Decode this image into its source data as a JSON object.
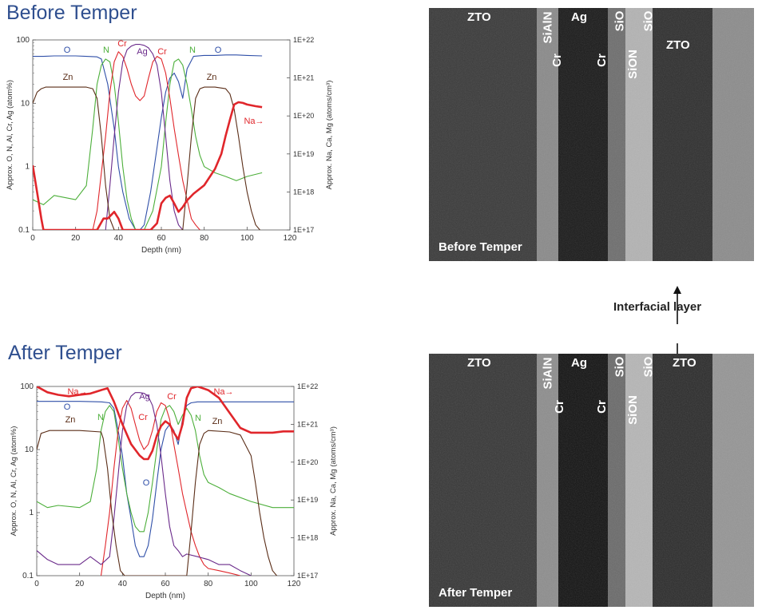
{
  "titles": {
    "before": "Before Temper",
    "after": "After Temper"
  },
  "colors": {
    "title": "#2f4f8f",
    "O": "#2f4fa8",
    "N": "#4caf3a",
    "Cr": "#e0262b",
    "Ag": "#6a2a8a",
    "Zn": "#5a2d17",
    "Na": "#e0262b"
  },
  "chart_data": [
    {
      "type": "line",
      "title": "Before Temper",
      "xlabel": "Depth (nm)",
      "ylabel": "Approx. O, N, Al, Cr, Ag (atom%)",
      "y2label": "Approx. Na, Ca, Mg (atoms/cm³)",
      "y_scale": "log",
      "xlim": [
        0,
        120
      ],
      "ylim": [
        0.1,
        100
      ],
      "y2lim": [
        "1E+17",
        "1E+22"
      ],
      "x_ticks": [
        "0",
        "20",
        "40",
        "60",
        "80",
        "100",
        "120"
      ],
      "y_ticks": [
        "0.1",
        "1",
        "10",
        "100"
      ],
      "y2_ticks": [
        "1E+17",
        "1E+18",
        "1E+19",
        "1E+20",
        "1E+21",
        "1E+22"
      ],
      "grid": false,
      "series": [
        {
          "name": "O",
          "x": [
            0,
            5,
            10,
            20,
            25,
            30,
            32,
            35,
            38,
            40,
            42,
            45,
            48,
            50,
            52,
            55,
            58,
            60,
            62,
            64,
            66,
            68,
            70,
            72,
            75,
            80,
            85,
            90,
            95,
            100,
            107
          ],
          "y": [
            55,
            55,
            56,
            56,
            55,
            54,
            50,
            20,
            4,
            1,
            0.4,
            0.15,
            0.1,
            0.1,
            0.12,
            0.4,
            2,
            6,
            15,
            25,
            30,
            22,
            12,
            35,
            55,
            57,
            57,
            58,
            58,
            57,
            56
          ]
        },
        {
          "name": "N",
          "x": [
            0,
            5,
            10,
            20,
            25,
            28,
            30,
            32,
            34,
            36,
            38,
            40,
            42,
            44,
            46,
            48,
            52,
            56,
            60,
            62,
            64,
            66,
            68,
            70,
            72,
            74,
            76,
            78,
            80,
            85,
            90,
            95,
            100,
            107
          ],
          "y": [
            0.3,
            0.25,
            0.35,
            0.3,
            0.5,
            4,
            20,
            40,
            50,
            45,
            20,
            5,
            1,
            0.3,
            0.15,
            0.1,
            0.1,
            0.2,
            1,
            5,
            20,
            45,
            50,
            40,
            20,
            8,
            3,
            1.5,
            1,
            0.8,
            0.7,
            0.6,
            0.7,
            0.8
          ]
        },
        {
          "name": "Cr",
          "x": [
            28,
            30,
            32,
            34,
            36,
            38,
            40,
            42,
            44,
            46,
            48,
            50,
            52,
            54,
            56,
            58,
            60,
            62,
            64,
            66,
            68,
            70,
            72,
            74,
            76,
            78
          ],
          "y": [
            0.1,
            0.2,
            0.8,
            3,
            15,
            45,
            65,
            55,
            35,
            20,
            13,
            11,
            13,
            25,
            45,
            55,
            50,
            30,
            12,
            4,
            1.5,
            0.6,
            0.3,
            0.15,
            0.12,
            0.1
          ]
        },
        {
          "name": "Ag",
          "x": [
            34,
            36,
            38,
            40,
            42,
            44,
            46,
            48,
            50,
            52,
            54,
            56,
            58,
            60,
            62,
            64,
            66,
            68,
            70
          ],
          "y": [
            0.1,
            0.5,
            3,
            15,
            45,
            70,
            80,
            85,
            85,
            82,
            75,
            60,
            40,
            15,
            3,
            0.6,
            0.2,
            0.12,
            0.1
          ]
        },
        {
          "name": "Zn",
          "x": [
            0,
            2,
            4,
            6,
            8,
            10,
            20,
            25,
            28,
            30,
            32,
            34,
            36,
            38,
            70,
            72,
            74,
            76,
            78,
            80,
            85,
            90,
            92,
            94,
            96,
            98,
            100,
            102,
            104,
            106
          ],
          "y": [
            10,
            15,
            17,
            18,
            18,
            18,
            18,
            18,
            17,
            12,
            3,
            0.5,
            0.15,
            0.1,
            0.1,
            0.5,
            3,
            12,
            17,
            18,
            18,
            17,
            14,
            8,
            3,
            1,
            0.4,
            0.2,
            0.12,
            0.1
          ]
        },
        {
          "name": "Na",
          "x": [
            0,
            2,
            4,
            5,
            6,
            30,
            33,
            35,
            38,
            40,
            42,
            44,
            46,
            48,
            50,
            55,
            58,
            60,
            62,
            64,
            66,
            68,
            70,
            72,
            75,
            80,
            85,
            88,
            90,
            92,
            94,
            96,
            98,
            100,
            104,
            107
          ],
          "y": [
            "5E+18",
            "1E+18",
            "2E+17",
            "1E+17",
            "1E+17",
            "1E+17",
            "2E+17",
            "2E+17",
            "3E+17",
            "2E+17",
            "1E+17",
            "1E+17",
            "1E+17",
            "1E+17",
            "1E+17",
            "1E+17",
            "1.5E+17",
            "5E+17",
            "7E+17",
            "8E+17",
            "5E+17",
            "3E+17",
            "4E+17",
            "6E+17",
            "9E+17",
            "1.5E+18",
            "4E+18",
            "1E+19",
            "3E+19",
            "8E+19",
            "2E+20",
            "2.3E+20",
            "2.2E+20",
            "2E+20",
            "1.8E+20",
            "1.7E+20"
          ]
        }
      ],
      "annotations": [
        "O",
        "N",
        "Cr",
        "Ag",
        "Cr",
        "N",
        "O",
        "Zn",
        "Zn",
        "Na→"
      ]
    },
    {
      "type": "line",
      "title": "After Temper",
      "xlabel": "Depth (nm)",
      "ylabel": "Approx. O, N, Al, Cr, Ag (atom%)",
      "y2label": "Approx. Na, Ca, Mg (atoms/cm³)",
      "y_scale": "log",
      "xlim": [
        0,
        120
      ],
      "ylim": [
        0.1,
        100
      ],
      "y2lim": [
        "1E+17",
        "1E+22"
      ],
      "x_ticks": [
        "0",
        "20",
        "40",
        "60",
        "80",
        "100",
        "120"
      ],
      "y_ticks": [
        "0.1",
        "1",
        "10",
        "100"
      ],
      "y2_ticks": [
        "1E+17",
        "1E+18",
        "1E+19",
        "1E+20",
        "1E+21",
        "1E+22"
      ],
      "grid": false,
      "series": [
        {
          "name": "O",
          "x": [
            0,
            10,
            20,
            30,
            34,
            36,
            38,
            40,
            42,
            44,
            46,
            48,
            50,
            52,
            54,
            56,
            58,
            60,
            62,
            64,
            66,
            68,
            70,
            72,
            75,
            80,
            90,
            100,
            110,
            120
          ],
          "y": [
            58,
            58,
            58,
            57,
            55,
            45,
            20,
            8,
            2,
            0.8,
            0.3,
            0.2,
            0.2,
            0.3,
            0.8,
            3,
            10,
            20,
            25,
            20,
            12,
            30,
            50,
            55,
            57,
            57,
            57,
            57,
            57,
            57
          ]
        },
        {
          "name": "N",
          "x": [
            0,
            5,
            10,
            20,
            25,
            28,
            30,
            32,
            34,
            36,
            38,
            40,
            42,
            44,
            46,
            48,
            50,
            52,
            54,
            56,
            58,
            60,
            62,
            64,
            66,
            68,
            70,
            72,
            74,
            76,
            78,
            80,
            85,
            90,
            100,
            110,
            120
          ],
          "y": [
            1.5,
            1.2,
            1.3,
            1.2,
            1.5,
            5,
            20,
            40,
            50,
            40,
            15,
            5,
            2,
            1,
            0.6,
            0.5,
            0.5,
            1,
            3,
            10,
            30,
            45,
            50,
            40,
            25,
            35,
            45,
            35,
            20,
            8,
            4,
            3,
            2.5,
            2,
            1.5,
            1.2,
            1.2
          ]
        },
        {
          "name": "Cr",
          "x": [
            30,
            32,
            34,
            36,
            38,
            40,
            42,
            44,
            46,
            48,
            50,
            52,
            54,
            56,
            58,
            60,
            62,
            64,
            66,
            68,
            70,
            72,
            74,
            76,
            78,
            80,
            85,
            90,
            95
          ],
          "y": [
            0.1,
            0.3,
            1,
            5,
            20,
            45,
            60,
            45,
            25,
            14,
            10,
            12,
            20,
            40,
            55,
            50,
            30,
            12,
            5,
            2,
            1,
            0.5,
            0.3,
            0.2,
            0.15,
            0.13,
            0.12,
            0.11,
            0.1
          ]
        },
        {
          "name": "Ag",
          "x": [
            0,
            5,
            10,
            20,
            25,
            30,
            34,
            36,
            38,
            40,
            42,
            44,
            46,
            48,
            50,
            52,
            54,
            56,
            58,
            60,
            62,
            64,
            66,
            68,
            70,
            75,
            80,
            85,
            90,
            95,
            100
          ],
          "y": [
            0.25,
            0.18,
            0.15,
            0.15,
            0.2,
            0.15,
            0.2,
            0.8,
            4,
            20,
            50,
            70,
            80,
            80,
            78,
            70,
            50,
            25,
            8,
            2,
            0.6,
            0.3,
            0.25,
            0.2,
            0.22,
            0.2,
            0.18,
            0.15,
            0.15,
            0.12,
            0.1
          ]
        },
        {
          "name": "Zn",
          "x": [
            0,
            2,
            4,
            6,
            10,
            20,
            30,
            31,
            33,
            35,
            37,
            39,
            41,
            70,
            72,
            74,
            76,
            78,
            80,
            90,
            95,
            100,
            102,
            104,
            106,
            108,
            110,
            112
          ],
          "y": [
            10,
            18,
            19,
            20,
            20,
            20,
            19,
            15,
            5,
            1,
            0.3,
            0.12,
            0.1,
            0.1,
            0.5,
            3,
            12,
            18,
            20,
            19,
            17,
            8,
            3,
            1,
            0.4,
            0.2,
            0.12,
            0.1
          ]
        },
        {
          "name": "Na",
          "x": [
            0,
            5,
            10,
            15,
            20,
            25,
            30,
            33,
            36,
            40,
            44,
            48,
            50,
            52,
            54,
            56,
            58,
            60,
            62,
            64,
            66,
            68,
            70,
            72,
            75,
            80,
            85,
            90,
            95,
            100,
            105,
            110,
            115,
            120
          ],
          "y": [
            "1E+22",
            "7E+21",
            "6E+21",
            "5.5E+21",
            "6E+21",
            "6.5E+21",
            "8E+21",
            "9E+21",
            "4E+21",
            "1E+21",
            "3E+20",
            "1.5E+20",
            "1.2E+20",
            "1.2E+20",
            "2E+20",
            "5E+20",
            "9E+20",
            "1.2E+21",
            "1E+21",
            "6E+20",
            "4E+20",
            "1E+21",
            "5E+21",
            "9E+21",
            "1E+22",
            "8E+21",
            "5E+21",
            "2E+21",
            "8E+20",
            "6E+20",
            "6E+20",
            "6E+20",
            "6.5E+20",
            "6.5E+20"
          ]
        }
      ],
      "annotations": [
        "Na→",
        "O",
        "Zn",
        "N",
        "Ag",
        "Cr",
        "Cr",
        "O",
        "Na→",
        "N",
        "Zn"
      ]
    }
  ],
  "tem_before": {
    "caption": "Before Temper",
    "labels": [
      "ZTO",
      "SiAlN",
      "Ag",
      "SiO",
      "SiO",
      "ZTO",
      "Cr",
      "Cr",
      "SiON"
    ]
  },
  "tem_after": {
    "caption": "After Temper",
    "labels": [
      "ZTO",
      "SiAlN",
      "Ag",
      "SiO",
      "SiO",
      "ZTO",
      "Cr",
      "Cr",
      "SiON"
    ]
  },
  "interfacial_label": "Interfacial layer"
}
